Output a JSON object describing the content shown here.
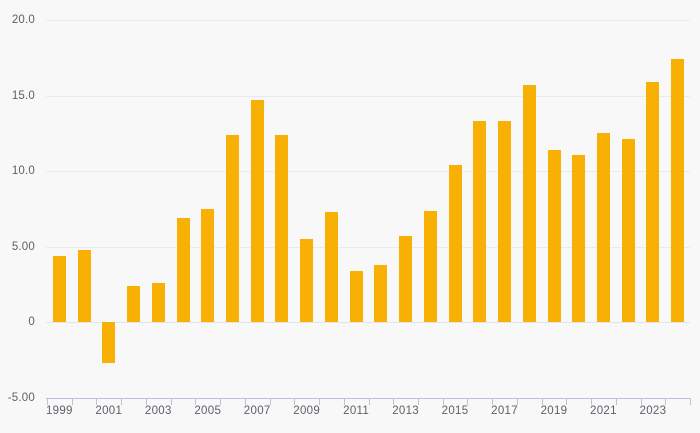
{
  "chart_data": {
    "type": "bar",
    "title": "",
    "xlabel": "",
    "ylabel": "",
    "categories": [
      1999,
      2000,
      2001,
      2002,
      2003,
      2004,
      2005,
      2006,
      2007,
      2008,
      2009,
      2010,
      2011,
      2012,
      2013,
      2014,
      2015,
      2016,
      2017,
      2018,
      2019,
      2020,
      2021,
      2022,
      2023,
      2024
    ],
    "values": [
      4.4,
      4.8,
      -2.7,
      2.4,
      2.6,
      6.9,
      7.5,
      12.4,
      14.7,
      12.4,
      5.5,
      7.3,
      3.4,
      3.8,
      5.7,
      7.4,
      10.4,
      13.3,
      13.3,
      15.7,
      11.4,
      11.1,
      12.5,
      12.1,
      15.9,
      17.4
    ],
    "series_color": "#F9B005",
    "ylim": [
      -5,
      20
    ],
    "ytick_values": [
      20,
      15,
      10,
      5,
      0,
      -5
    ],
    "ytick_labels": [
      "20.0",
      "15.0",
      "10.0",
      "5.00",
      "0",
      "-5.00"
    ],
    "xtick_labels": [
      "1999",
      "2001",
      "2003",
      "2005",
      "2007",
      "2009",
      "2011",
      "2013",
      "2015",
      "2017",
      "2019",
      "2021",
      "2023"
    ],
    "grid": true,
    "legend": false
  },
  "colors": {
    "background": "#F8F8F9",
    "bar": "#F9B005",
    "gridline": "#E9EAEC",
    "axis": "#B6C3DA",
    "label_text": "#5D6167"
  }
}
